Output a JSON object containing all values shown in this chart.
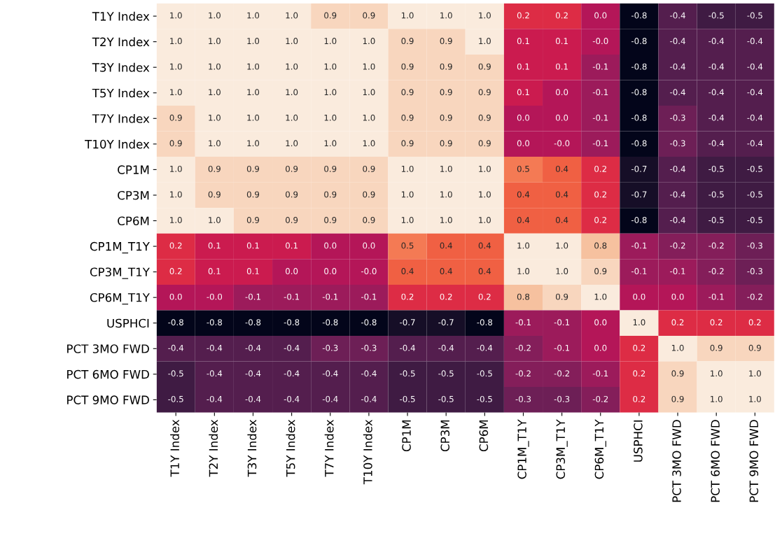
{
  "chart_data": {
    "type": "heatmap",
    "categories": [
      "T1Y Index",
      "T2Y Index",
      "T3Y Index",
      "T5Y Index",
      "T7Y Index",
      "T10Y Index",
      "CP1M",
      "CP3M",
      "CP6M",
      "CP1M_T1Y",
      "CP3M_T1Y",
      "CP6M_T1Y",
      "USPHCI",
      "PCT 3MO FWD",
      "PCT 6MO FWD",
      "PCT 9MO FWD"
    ],
    "y_categories": [
      "T1Y Index",
      "T2Y Index",
      "T3Y Index",
      "T5Y Index",
      "T7Y Index",
      "T10Y Index",
      "CP1M",
      "CP3M",
      "CP6M",
      "CP1M_T1Y",
      "CP3M_T1Y",
      "CP6M_T1Y",
      "USPHCI",
      "PCT 3MO FWD",
      "PCT 6MO FWD",
      "PCT 9MO FWD"
    ],
    "cells": [
      [
        1.0,
        1.0,
        1.0,
        1.0,
        0.9,
        0.9,
        1.0,
        1.0,
        1.0,
        0.2,
        0.2,
        0.0,
        -0.8,
        -0.4,
        -0.5,
        -0.5
      ],
      [
        1.0,
        1.0,
        1.0,
        1.0,
        1.0,
        1.0,
        0.9,
        0.9,
        1.0,
        0.1,
        0.1,
        -0.0,
        -0.8,
        -0.4,
        -0.4,
        -0.4
      ],
      [
        1.0,
        1.0,
        1.0,
        1.0,
        1.0,
        1.0,
        0.9,
        0.9,
        0.9,
        0.1,
        0.1,
        -0.1,
        -0.8,
        -0.4,
        -0.4,
        -0.4
      ],
      [
        1.0,
        1.0,
        1.0,
        1.0,
        1.0,
        1.0,
        0.9,
        0.9,
        0.9,
        0.1,
        0.0,
        -0.1,
        -0.8,
        -0.4,
        -0.4,
        -0.4
      ],
      [
        0.9,
        1.0,
        1.0,
        1.0,
        1.0,
        1.0,
        0.9,
        0.9,
        0.9,
        0.0,
        0.0,
        -0.1,
        -0.8,
        -0.3,
        -0.4,
        -0.4
      ],
      [
        0.9,
        1.0,
        1.0,
        1.0,
        1.0,
        1.0,
        0.9,
        0.9,
        0.9,
        0.0,
        -0.0,
        -0.1,
        -0.8,
        -0.3,
        -0.4,
        -0.4
      ],
      [
        1.0,
        0.9,
        0.9,
        0.9,
        0.9,
        0.9,
        1.0,
        1.0,
        1.0,
        0.5,
        0.4,
        0.2,
        -0.7,
        -0.4,
        -0.5,
        -0.5
      ],
      [
        1.0,
        0.9,
        0.9,
        0.9,
        0.9,
        0.9,
        1.0,
        1.0,
        1.0,
        0.4,
        0.4,
        0.2,
        -0.7,
        -0.4,
        -0.5,
        -0.5
      ],
      [
        1.0,
        1.0,
        0.9,
        0.9,
        0.9,
        0.9,
        1.0,
        1.0,
        1.0,
        0.4,
        0.4,
        0.2,
        -0.8,
        -0.4,
        -0.5,
        -0.5
      ],
      [
        0.2,
        0.1,
        0.1,
        0.1,
        0.0,
        0.0,
        0.5,
        0.4,
        0.4,
        1.0,
        1.0,
        0.8,
        -0.1,
        -0.2,
        -0.2,
        -0.3
      ],
      [
        0.2,
        0.1,
        0.1,
        0.0,
        0.0,
        -0.0,
        0.4,
        0.4,
        0.4,
        1.0,
        1.0,
        0.9,
        -0.1,
        -0.1,
        -0.2,
        -0.3
      ],
      [
        0.0,
        -0.0,
        -0.1,
        -0.1,
        -0.1,
        -0.1,
        0.2,
        0.2,
        0.2,
        0.8,
        0.9,
        1.0,
        0.0,
        0.0,
        -0.1,
        -0.2
      ],
      [
        -0.8,
        -0.8,
        -0.8,
        -0.8,
        -0.8,
        -0.8,
        -0.7,
        -0.7,
        -0.8,
        -0.1,
        -0.1,
        0.0,
        1.0,
        0.2,
        0.2,
        0.2
      ],
      [
        -0.4,
        -0.4,
        -0.4,
        -0.4,
        -0.3,
        -0.3,
        -0.4,
        -0.4,
        -0.4,
        -0.2,
        -0.1,
        0.0,
        0.2,
        1.0,
        0.9,
        0.9
      ],
      [
        -0.5,
        -0.4,
        -0.4,
        -0.4,
        -0.4,
        -0.4,
        -0.5,
        -0.5,
        -0.5,
        -0.2,
        -0.2,
        -0.1,
        0.2,
        0.9,
        1.0,
        1.0
      ],
      [
        -0.5,
        -0.4,
        -0.4,
        -0.4,
        -0.4,
        -0.4,
        -0.5,
        -0.5,
        -0.5,
        -0.3,
        -0.3,
        -0.2,
        0.2,
        0.9,
        1.0,
        1.0
      ]
    ],
    "cell_labels": [
      [
        "1.0",
        "1.0",
        "1.0",
        "1.0",
        "0.9",
        "0.9",
        "1.0",
        "1.0",
        "1.0",
        "0.2",
        "0.2",
        "0.0",
        "-0.8",
        "-0.4",
        "-0.5",
        "-0.5"
      ],
      [
        "1.0",
        "1.0",
        "1.0",
        "1.0",
        "1.0",
        "1.0",
        "0.9",
        "0.9",
        "1.0",
        "0.1",
        "0.1",
        "-0.0",
        "-0.8",
        "-0.4",
        "-0.4",
        "-0.4"
      ],
      [
        "1.0",
        "1.0",
        "1.0",
        "1.0",
        "1.0",
        "1.0",
        "0.9",
        "0.9",
        "0.9",
        "0.1",
        "0.1",
        "-0.1",
        "-0.8",
        "-0.4",
        "-0.4",
        "-0.4"
      ],
      [
        "1.0",
        "1.0",
        "1.0",
        "1.0",
        "1.0",
        "1.0",
        "0.9",
        "0.9",
        "0.9",
        "0.1",
        "0.0",
        "-0.1",
        "-0.8",
        "-0.4",
        "-0.4",
        "-0.4"
      ],
      [
        "0.9",
        "1.0",
        "1.0",
        "1.0",
        "1.0",
        "1.0",
        "0.9",
        "0.9",
        "0.9",
        "0.0",
        "0.0",
        "-0.1",
        "-0.8",
        "-0.3",
        "-0.4",
        "-0.4"
      ],
      [
        "0.9",
        "1.0",
        "1.0",
        "1.0",
        "1.0",
        "1.0",
        "0.9",
        "0.9",
        "0.9",
        "0.0",
        "-0.0",
        "-0.1",
        "-0.8",
        "-0.3",
        "-0.4",
        "-0.4"
      ],
      [
        "1.0",
        "0.9",
        "0.9",
        "0.9",
        "0.9",
        "0.9",
        "1.0",
        "1.0",
        "1.0",
        "0.5",
        "0.4",
        "0.2",
        "-0.7",
        "-0.4",
        "-0.5",
        "-0.5"
      ],
      [
        "1.0",
        "0.9",
        "0.9",
        "0.9",
        "0.9",
        "0.9",
        "1.0",
        "1.0",
        "1.0",
        "0.4",
        "0.4",
        "0.2",
        "-0.7",
        "-0.4",
        "-0.5",
        "-0.5"
      ],
      [
        "1.0",
        "1.0",
        "0.9",
        "0.9",
        "0.9",
        "0.9",
        "1.0",
        "1.0",
        "1.0",
        "0.4",
        "0.4",
        "0.2",
        "-0.8",
        "-0.4",
        "-0.5",
        "-0.5"
      ],
      [
        "0.2",
        "0.1",
        "0.1",
        "0.1",
        "0.0",
        "0.0",
        "0.5",
        "0.4",
        "0.4",
        "1.0",
        "1.0",
        "0.8",
        "-0.1",
        "-0.2",
        "-0.2",
        "-0.3"
      ],
      [
        "0.2",
        "0.1",
        "0.1",
        "0.0",
        "0.0",
        "-0.0",
        "0.4",
        "0.4",
        "0.4",
        "1.0",
        "1.0",
        "0.9",
        "-0.1",
        "-0.1",
        "-0.2",
        "-0.3"
      ],
      [
        "0.0",
        "-0.0",
        "-0.1",
        "-0.1",
        "-0.1",
        "-0.1",
        "0.2",
        "0.2",
        "0.2",
        "0.8",
        "0.9",
        "1.0",
        "0.0",
        "0.0",
        "-0.1",
        "-0.2"
      ],
      [
        "-0.8",
        "-0.8",
        "-0.8",
        "-0.8",
        "-0.8",
        "-0.8",
        "-0.7",
        "-0.7",
        "-0.8",
        "-0.1",
        "-0.1",
        "0.0",
        "1.0",
        "0.2",
        "0.2",
        "0.2"
      ],
      [
        "-0.4",
        "-0.4",
        "-0.4",
        "-0.4",
        "-0.3",
        "-0.3",
        "-0.4",
        "-0.4",
        "-0.4",
        "-0.2",
        "-0.1",
        "0.0",
        "0.2",
        "1.0",
        "0.9",
        "0.9"
      ],
      [
        "-0.5",
        "-0.4",
        "-0.4",
        "-0.4",
        "-0.4",
        "-0.4",
        "-0.5",
        "-0.5",
        "-0.5",
        "-0.2",
        "-0.2",
        "-0.1",
        "0.2",
        "0.9",
        "1.0",
        "1.0"
      ],
      [
        "-0.5",
        "-0.4",
        "-0.4",
        "-0.4",
        "-0.4",
        "-0.4",
        "-0.5",
        "-0.5",
        "-0.5",
        "-0.3",
        "-0.3",
        "-0.2",
        "0.2",
        "0.9",
        "1.0",
        "1.0"
      ]
    ]
  }
}
